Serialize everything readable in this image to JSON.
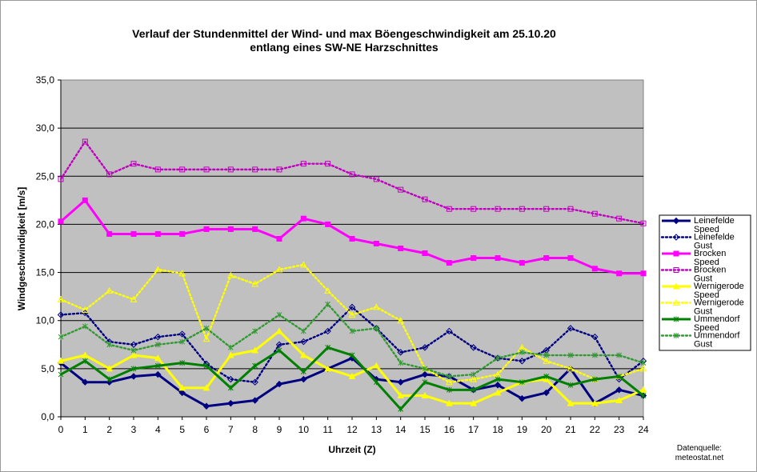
{
  "chart_data": {
    "type": "line",
    "title": "Verlauf der Stundenmittel der Wind- und max Böengeschwindigkeit am 25.10.20",
    "subtitle": "entlang eines SW-NE Harzschnittes",
    "xlabel": "Uhrzeit (Z)",
    "ylabel": "Windgeschwindigkeit [m/s]",
    "ylim": [
      0,
      35
    ],
    "xlim": [
      0,
      24
    ],
    "y_ticks": [
      "0,0",
      "5,0",
      "10,0",
      "15,0",
      "20,0",
      "25,0",
      "30,0",
      "35,0"
    ],
    "x": [
      0,
      1,
      2,
      3,
      4,
      5,
      6,
      7,
      8,
      9,
      10,
      11,
      12,
      13,
      14,
      15,
      16,
      17,
      18,
      19,
      20,
      21,
      22,
      23,
      24
    ],
    "grid": true,
    "legend_position": "right",
    "plot_background": "#c0c0c0",
    "series": [
      {
        "legend_lines": [
          "Leinefelde",
          "Speed"
        ],
        "color": "#000080",
        "style": "solid",
        "marker": "diamond",
        "values": [
          5.6,
          3.6,
          3.6,
          4.2,
          4.4,
          2.5,
          1.1,
          1.4,
          1.7,
          3.4,
          3.9,
          5.0,
          6.1,
          3.9,
          3.6,
          4.4,
          4.2,
          2.8,
          3.3,
          1.9,
          2.5,
          5.0,
          1.4,
          2.8,
          2.2
        ]
      },
      {
        "legend_lines": [
          "Leinefelde",
          "Gust"
        ],
        "color": "#000080",
        "style": "dotted",
        "marker": "diamond-open",
        "values": [
          10.6,
          10.8,
          7.8,
          7.5,
          8.3,
          8.6,
          5.5,
          3.9,
          3.6,
          7.5,
          7.8,
          8.9,
          11.4,
          9.2,
          6.7,
          7.2,
          8.9,
          7.2,
          6.1,
          5.8,
          6.9,
          9.2,
          8.3,
          3.9,
          5.8
        ]
      },
      {
        "legend_lines": [
          "Brocken",
          "Speed"
        ],
        "color": "#ff00ff",
        "style": "solid",
        "marker": "square",
        "values": [
          20.3,
          22.5,
          19.0,
          19.0,
          19.0,
          19.0,
          19.5,
          19.5,
          19.5,
          18.5,
          20.6,
          20.0,
          18.5,
          18.0,
          17.5,
          17.0,
          16.0,
          16.5,
          16.5,
          16.0,
          16.5,
          16.5,
          15.4,
          14.9,
          14.9
        ]
      },
      {
        "legend_lines": [
          "Brocken",
          "Gust"
        ],
        "color": "#c000c0",
        "style": "dotted",
        "marker": "square-open",
        "values": [
          24.7,
          28.6,
          25.2,
          26.3,
          25.7,
          25.7,
          25.7,
          25.7,
          25.7,
          25.7,
          26.3,
          26.3,
          25.2,
          24.7,
          23.6,
          22.6,
          21.6,
          21.6,
          21.6,
          21.6,
          21.6,
          21.6,
          21.1,
          20.6,
          20.1
        ]
      },
      {
        "legend_lines": [
          "Wernigerode",
          "Speed"
        ],
        "color": "#ffff00",
        "style": "solid",
        "marker": "triangle",
        "values": [
          5.8,
          6.4,
          5.0,
          6.4,
          6.1,
          3.0,
          3.0,
          6.4,
          6.9,
          8.9,
          6.4,
          5.0,
          4.2,
          5.3,
          2.2,
          2.2,
          1.4,
          1.4,
          2.5,
          3.6,
          3.9,
          1.4,
          1.4,
          1.7,
          2.8
        ]
      },
      {
        "legend_lines": [
          "Wernigerode",
          "Gust"
        ],
        "color": "#ffff00",
        "style": "dotted",
        "marker": "triangle-open",
        "values": [
          12.2,
          11.1,
          13.1,
          12.2,
          15.3,
          14.9,
          8.1,
          14.7,
          13.8,
          15.3,
          15.8,
          13.1,
          10.6,
          11.4,
          10.0,
          5.0,
          3.6,
          3.9,
          4.4,
          7.2,
          5.8,
          5.0,
          3.9,
          4.2,
          5.0
        ]
      },
      {
        "legend_lines": [
          "Ummendorf",
          "Speed"
        ],
        "color": "#008000",
        "style": "solid",
        "marker": "star",
        "values": [
          4.4,
          5.8,
          3.9,
          5.0,
          5.3,
          5.6,
          5.3,
          3.0,
          5.3,
          6.9,
          4.7,
          7.2,
          6.4,
          3.6,
          0.8,
          3.6,
          2.8,
          2.8,
          3.9,
          3.6,
          4.2,
          3.3,
          3.9,
          4.2,
          2.2
        ]
      },
      {
        "legend_lines": [
          "Ummendorf",
          "Gust"
        ],
        "color": "#339933",
        "style": "dotted",
        "marker": "star-open",
        "values": [
          8.3,
          9.4,
          7.5,
          6.9,
          7.5,
          7.8,
          9.2,
          7.2,
          8.9,
          10.6,
          8.9,
          11.7,
          8.9,
          9.2,
          5.6,
          5.0,
          4.2,
          4.4,
          6.1,
          6.7,
          6.4,
          6.4,
          6.4,
          6.4,
          5.6
        ]
      }
    ]
  },
  "source_note": [
    "Datenquelle:",
    "meteostat.net"
  ]
}
